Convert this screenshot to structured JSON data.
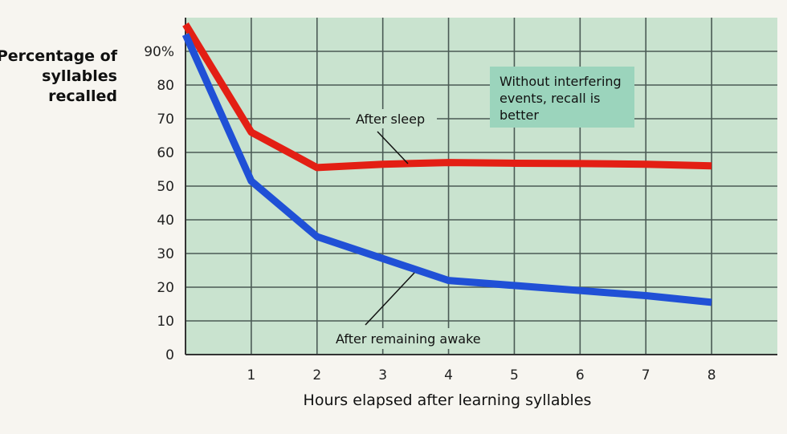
{
  "chart_data": {
    "type": "line",
    "ylabel_lines": [
      "Percentage of",
      "syllables",
      "recalled"
    ],
    "xlabel": "Hours elapsed after learning syllables",
    "xlim": [
      0,
      9
    ],
    "ylim": [
      0,
      100
    ],
    "x_ticks": [
      "1",
      "2",
      "3",
      "4",
      "5",
      "6",
      "7",
      "8"
    ],
    "y_ticks": [
      "0",
      "10",
      "20",
      "30",
      "40",
      "50",
      "60",
      "70",
      "80",
      "90%"
    ],
    "grid": true,
    "plot_background": "#c9e3cf",
    "series": [
      {
        "name": "After sleep",
        "color": "#e31f14",
        "x": [
          0,
          1,
          2,
          3,
          4,
          5,
          6,
          7,
          8
        ],
        "y": [
          98,
          66,
          55.5,
          56.5,
          57,
          56.8,
          56.7,
          56.5,
          56
        ]
      },
      {
        "name": "After remaining awake",
        "color": "#2050d6",
        "x": [
          0,
          1,
          2,
          3,
          4,
          5,
          6,
          7,
          8
        ],
        "y": [
          95,
          51.5,
          35,
          28.5,
          22,
          20.5,
          19,
          17.5,
          15.5
        ]
      }
    ],
    "annotations": {
      "callout_lines": [
        "Without interfering",
        "events, recall is",
        "better"
      ],
      "after_sleep": "After sleep",
      "after_awake": "After remaining awake"
    }
  }
}
